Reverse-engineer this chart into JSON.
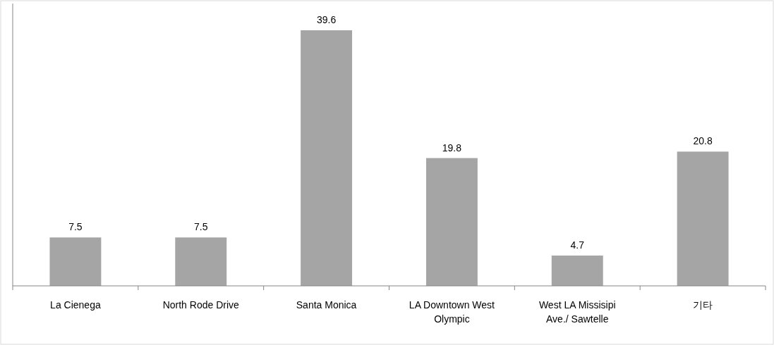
{
  "chart_data": {
    "type": "bar",
    "categories": [
      "La Cienega",
      "North Rode Drive",
      "Santa Monica",
      "LA Downtown West Olympic",
      "West LA Missisipi Ave./ Sawtelle",
      "기타"
    ],
    "values": [
      7.5,
      7.5,
      39.6,
      19.8,
      4.7,
      20.8
    ],
    "color": "#a5a5a5",
    "data_labels": true
  }
}
